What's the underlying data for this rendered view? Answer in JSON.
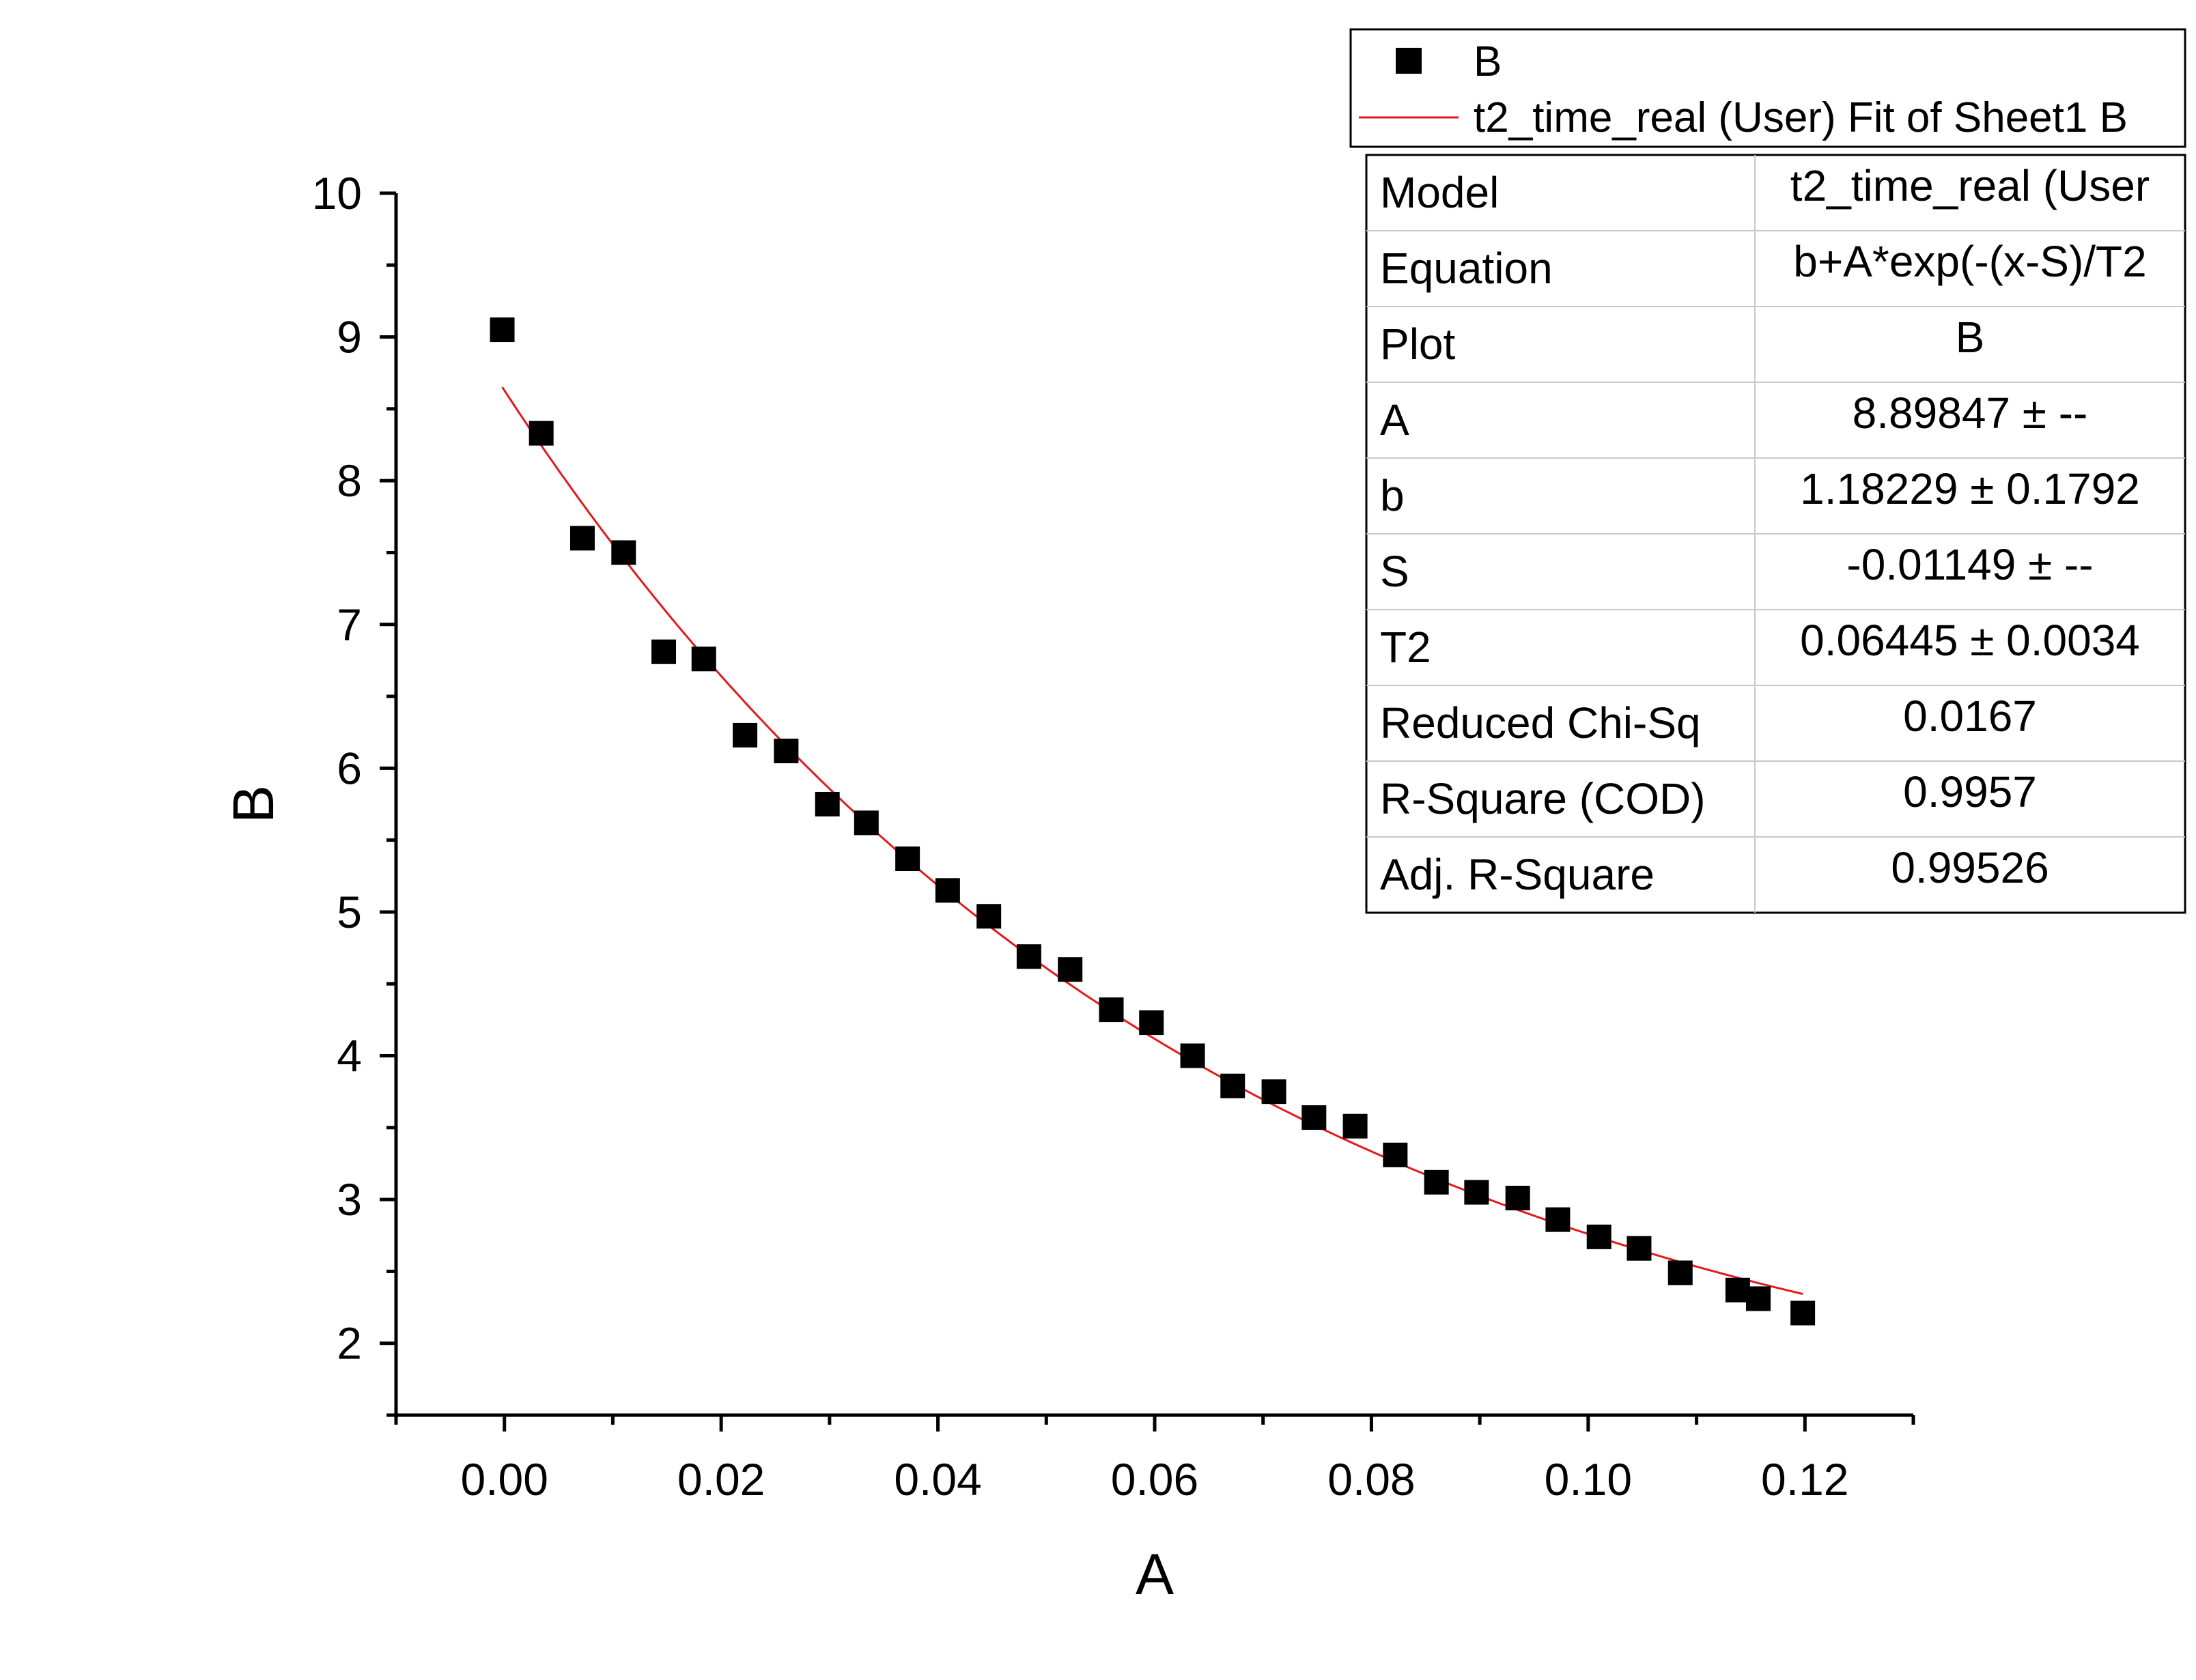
{
  "chart_data": {
    "type": "scatter",
    "xlabel": "A",
    "ylabel": "B",
    "xlim": [
      -0.01,
      0.13
    ],
    "ylim": [
      1.5,
      10
    ],
    "x_ticks": [
      "0.00",
      "0.02",
      "0.04",
      "0.06",
      "0.08",
      "0.10",
      "0.12"
    ],
    "y_ticks": [
      "2",
      "3",
      "4",
      "5",
      "6",
      "7",
      "8",
      "9",
      "10"
    ],
    "grid": false,
    "legend_position": "top-right",
    "series": [
      {
        "name": "B",
        "marker": "square",
        "color": "#000000",
        "x": [
          -0.0002,
          0.0034,
          0.0072,
          0.011,
          0.0147,
          0.0184,
          0.0222,
          0.026,
          0.0298,
          0.0334,
          0.0372,
          0.0409,
          0.0447,
          0.0484,
          0.0522,
          0.056,
          0.0597,
          0.0635,
          0.0672,
          0.071,
          0.0747,
          0.0785,
          0.0822,
          0.086,
          0.0897,
          0.0935,
          0.0972,
          0.101,
          0.1047,
          0.1085,
          0.1138,
          0.1157,
          0.1198
        ],
        "y": [
          9.05,
          8.33,
          7.6,
          7.5,
          6.81,
          6.76,
          6.23,
          6.12,
          5.75,
          5.62,
          5.37,
          5.15,
          4.97,
          4.69,
          4.6,
          4.32,
          4.23,
          4.0,
          3.79,
          3.75,
          3.57,
          3.51,
          3.31,
          3.12,
          3.05,
          3.01,
          2.86,
          2.74,
          2.66,
          2.49,
          2.37,
          2.31,
          2.21
        ]
      },
      {
        "name": "t2_time_real (User) Fit of Sheet1 B",
        "type": "line",
        "color": "#e31a1c",
        "function": "b+A*exp(-(x-S)/T2)",
        "params": {
          "A": 8.89847,
          "b": 1.18229,
          "S": -0.01149,
          "T2": 0.06445
        },
        "x_range": [
          -0.0002,
          0.1198
        ]
      }
    ],
    "stats_table": [
      {
        "label": "Model",
        "value": "t2_time_real (User"
      },
      {
        "label": "Equation",
        "value": "b+A*exp(-(x-S)/T2"
      },
      {
        "label": "Plot",
        "value": "B"
      },
      {
        "label": "A",
        "value": "8.89847 ± --"
      },
      {
        "label": "b",
        "value": "1.18229 ± 0.1792"
      },
      {
        "label": "S",
        "value": "-0.01149 ± --"
      },
      {
        "label": "T2",
        "value": "0.06445 ± 0.0034"
      },
      {
        "label": "Reduced Chi-Sq",
        "value": "0.0167"
      },
      {
        "label": "R-Square (COD)",
        "value": "0.9957"
      },
      {
        "label": "Adj. R-Square",
        "value": "0.99526"
      }
    ]
  }
}
